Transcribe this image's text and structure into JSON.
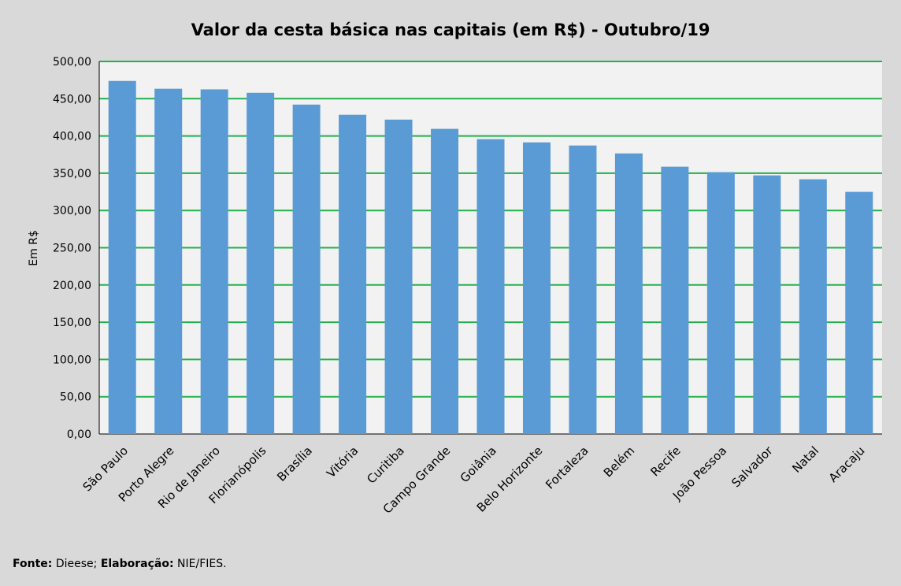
{
  "chart_data": {
    "type": "bar",
    "title": "Valor da cesta básica nas capitais (em R$) - Outubro/19",
    "xlabel": "",
    "ylabel": "Em R$",
    "ylim": [
      0,
      500
    ],
    "yticks": [
      0,
      50,
      100,
      150,
      200,
      250,
      300,
      350,
      400,
      450,
      500
    ],
    "ytick_labels": [
      "0,00",
      "50,00",
      "100,00",
      "150,00",
      "200,00",
      "250,00",
      "300,00",
      "350,00",
      "400,00",
      "450,00",
      "500,00"
    ],
    "grid": true,
    "categories": [
      "São Paulo",
      "Porto Alegre",
      "Rio de Janeiro",
      "Florianópolis",
      "Brasília",
      "Vitória",
      "Curitiba",
      "Campo Grande",
      "Goiânia",
      "Belo Horizonte",
      "Fortaleza",
      "Belém",
      "Recife",
      "João Pessoa",
      "Salvador",
      "Natal",
      "Aracaju"
    ],
    "values": [
      473.85,
      463.34,
      462.52,
      457.95,
      442.08,
      428.44,
      421.92,
      409.52,
      395.67,
      391.35,
      387.17,
      376.55,
      358.72,
      351.4,
      347.06,
      341.85,
      324.96
    ],
    "colors": {
      "bar": "#5b9bd5",
      "grid": "#22b14c",
      "plot_bg": "#f2f2f2",
      "background": "#d9d9d9"
    }
  },
  "source": {
    "fonte_label": "Fonte:",
    "fonte_value": "Dieese;",
    "elaboracao_label": "Elaboração:",
    "elaboracao_value": "NIE/FIES."
  }
}
